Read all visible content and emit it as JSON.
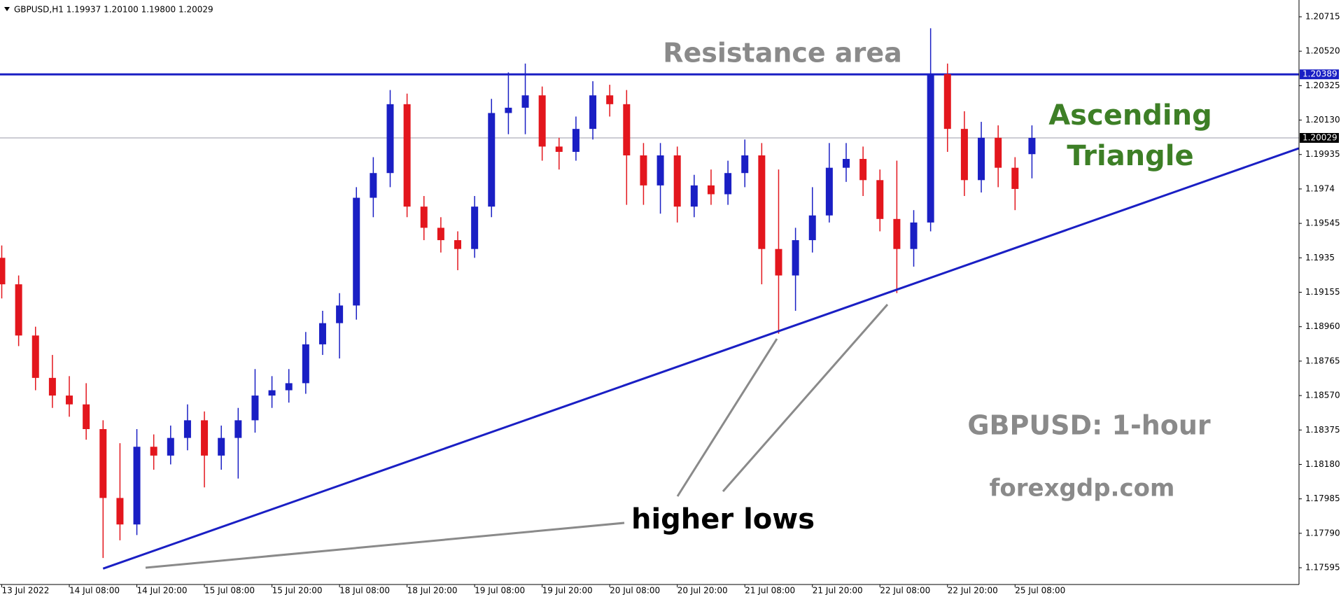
{
  "chart_data": {
    "type": "candlestick",
    "header": "GBPUSD,H1  1.19937 1.20100 1.19800 1.20029",
    "categories": [
      "13 Jul 2022",
      null,
      null,
      null,
      "14 Jul 08:00",
      null,
      null,
      null,
      "14 Jul 20:00",
      null,
      null,
      null,
      "15 Jul 08:00",
      null,
      null,
      null,
      "15 Jul 20:00",
      null,
      null,
      null,
      "18 Jul 08:00",
      null,
      null,
      null,
      "18 Jul 20:00",
      null,
      null,
      null,
      "19 Jul 08:00",
      null,
      null,
      null,
      "19 Jul 20:00",
      null,
      null,
      null,
      "20 Jul 08:00",
      null,
      null,
      null,
      "20 Jul 20:00",
      null,
      null,
      null,
      "21 Jul 08:00",
      null,
      null,
      null,
      "21 Jul 20:00",
      null,
      null,
      null,
      "22 Jul 08:00",
      null,
      null,
      null,
      "22 Jul 20:00",
      null,
      null,
      null,
      "25 Jul 08:00",
      null
    ],
    "up_color": "#1a1fc4",
    "down_color": "#e3161d",
    "open": [
      1.1935,
      1.192,
      1.1891,
      1.1867,
      1.1857,
      1.1852,
      1.1838,
      1.1799,
      1.1784,
      1.1828,
      1.1823,
      1.1833,
      1.1843,
      1.1823,
      1.1833,
      1.1843,
      1.1857,
      1.186,
      1.1864,
      1.1886,
      1.1898,
      1.1908,
      1.1969,
      1.1983,
      1.2022,
      1.1964,
      1.1952,
      1.1945,
      1.194,
      1.1964,
      1.2017,
      1.202,
      1.2027,
      1.1998,
      1.1995,
      1.2008,
      1.2027,
      1.2022,
      1.1993,
      1.1976,
      1.1993,
      1.1964,
      1.1976,
      1.1971,
      1.1983,
      1.1993,
      1.194,
      1.1925,
      1.1945,
      1.1959,
      1.1986,
      1.1991,
      1.1979,
      1.1957,
      1.194,
      1.1955,
      1.2039,
      1.2008,
      1.1979,
      1.2003,
      1.1986,
      1.19937
    ],
    "high": [
      1.1942,
      1.1925,
      1.1896,
      1.188,
      1.1868,
      1.1864,
      1.1843,
      1.183,
      1.1838,
      1.1835,
      1.184,
      1.1852,
      1.1848,
      1.184,
      1.185,
      1.1872,
      1.1868,
      1.1872,
      1.1893,
      1.1905,
      1.1915,
      1.1975,
      1.1992,
      1.203,
      1.2028,
      1.197,
      1.1958,
      1.195,
      1.197,
      1.2025,
      1.204,
      1.2045,
      1.2032,
      1.2003,
      1.2015,
      1.2035,
      1.2033,
      1.203,
      1.2,
      1.2,
      1.1998,
      1.1982,
      1.1985,
      1.199,
      1.2002,
      1.2,
      1.1985,
      1.1952,
      1.1975,
      1.2,
      1.2,
      1.1998,
      1.1985,
      1.199,
      1.1962,
      1.2065,
      1.2045,
      1.2018,
      1.2012,
      1.201,
      1.1992,
      1.201
    ],
    "low": [
      1.1912,
      1.1885,
      1.186,
      1.185,
      1.1845,
      1.1832,
      1.1765,
      1.1775,
      1.1778,
      1.1815,
      1.1818,
      1.1826,
      1.1805,
      1.1815,
      1.181,
      1.1836,
      1.185,
      1.1853,
      1.1858,
      1.188,
      1.1878,
      1.19,
      1.1958,
      1.1975,
      1.1958,
      1.1945,
      1.1938,
      1.1928,
      1.1935,
      1.1958,
      1.2005,
      1.2005,
      1.199,
      1.1985,
      1.199,
      1.2002,
      1.2015,
      1.1965,
      1.1965,
      1.196,
      1.1955,
      1.1958,
      1.1965,
      1.1965,
      1.1975,
      1.192,
      1.1892,
      1.1905,
      1.1938,
      1.1955,
      1.1978,
      1.197,
      1.195,
      1.1915,
      1.193,
      1.195,
      1.1995,
      1.197,
      1.1972,
      1.1975,
      1.1962,
      1.198
    ],
    "close": [
      1.192,
      1.1891,
      1.1867,
      1.1857,
      1.1852,
      1.1838,
      1.1799,
      1.1784,
      1.1828,
      1.1823,
      1.1833,
      1.1843,
      1.1823,
      1.1833,
      1.1843,
      1.1857,
      1.186,
      1.1864,
      1.1886,
      1.1898,
      1.1908,
      1.1969,
      1.1983,
      1.2022,
      1.1964,
      1.1952,
      1.1945,
      1.194,
      1.1964,
      1.2017,
      1.202,
      1.2027,
      1.1998,
      1.1995,
      1.2008,
      1.2027,
      1.2022,
      1.1993,
      1.1976,
      1.1993,
      1.1964,
      1.1976,
      1.1971,
      1.1983,
      1.1993,
      1.194,
      1.1925,
      1.1945,
      1.1959,
      1.1986,
      1.1991,
      1.1979,
      1.1957,
      1.194,
      1.1955,
      1.2039,
      1.2008,
      1.1979,
      1.2003,
      1.1986,
      1.1974,
      1.20029
    ],
    "ylim": [
      1.175,
      1.2081
    ],
    "yticks": [
      1.20715,
      {
        "value": 1.2052,
        "label": "1.20520"
      },
      1.20325,
      {
        "value": 1.2013,
        "label": "1.20130"
      },
      1.19935,
      1.1974,
      1.19545,
      1.1935,
      1.19155,
      {
        "value": 1.1896,
        "label": "1.18960"
      },
      1.18765,
      {
        "value": 1.1857,
        "label": "1.18570"
      },
      1.18375,
      {
        "value": 1.1818,
        "label": "1.18180"
      },
      1.17985,
      {
        "value": 1.1779,
        "label": "1.17790"
      },
      1.17595
    ],
    "levels": [
      {
        "value": 1.20389,
        "color": "#1a1fc4"
      },
      {
        "value": 1.20029,
        "color": "#9a9aaa"
      }
    ],
    "trendline": {
      "start": [
        6,
        1.1759
      ],
      "end": [
        76.8,
        1.1997
      ],
      "color": "#1a1fc4"
    },
    "annotations": {
      "resistance": "Resistance area",
      "pattern": [
        "Ascending",
        "Triangle"
      ],
      "instrument": "GBPUSD: 1-hour",
      "source": "forexgdp.com",
      "lows": "higher lows"
    }
  }
}
